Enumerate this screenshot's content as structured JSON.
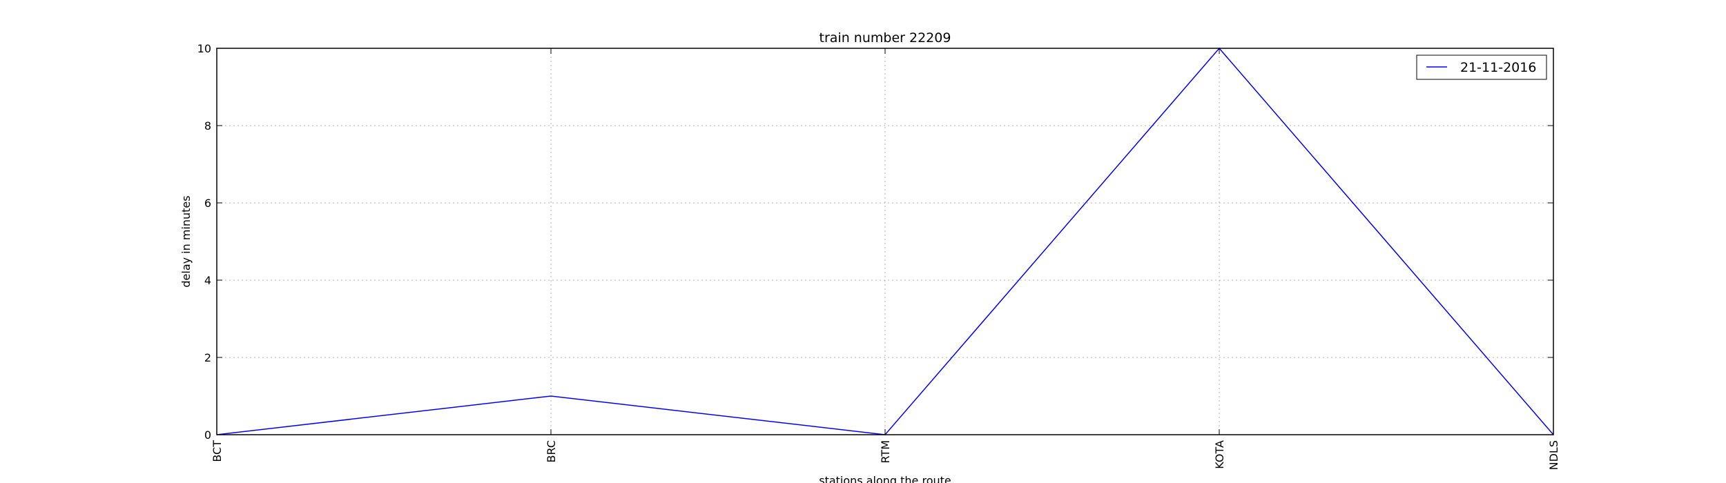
{
  "chart_data": {
    "type": "line",
    "title": "train number 22209",
    "xlabel": "stations along the route",
    "ylabel": "delay in minutes",
    "categories": [
      "BCT",
      "BRC",
      "RTM",
      "KOTA",
      "NDLS"
    ],
    "series": [
      {
        "name": "21-11-2016",
        "values": [
          0,
          1,
          0,
          10,
          0
        ],
        "color": "#0000ff"
      }
    ],
    "ylim": [
      0,
      10
    ],
    "yticks": [
      "0",
      "2",
      "4",
      "6",
      "8",
      "10"
    ],
    "grid": true,
    "legend_position": "top-right"
  }
}
